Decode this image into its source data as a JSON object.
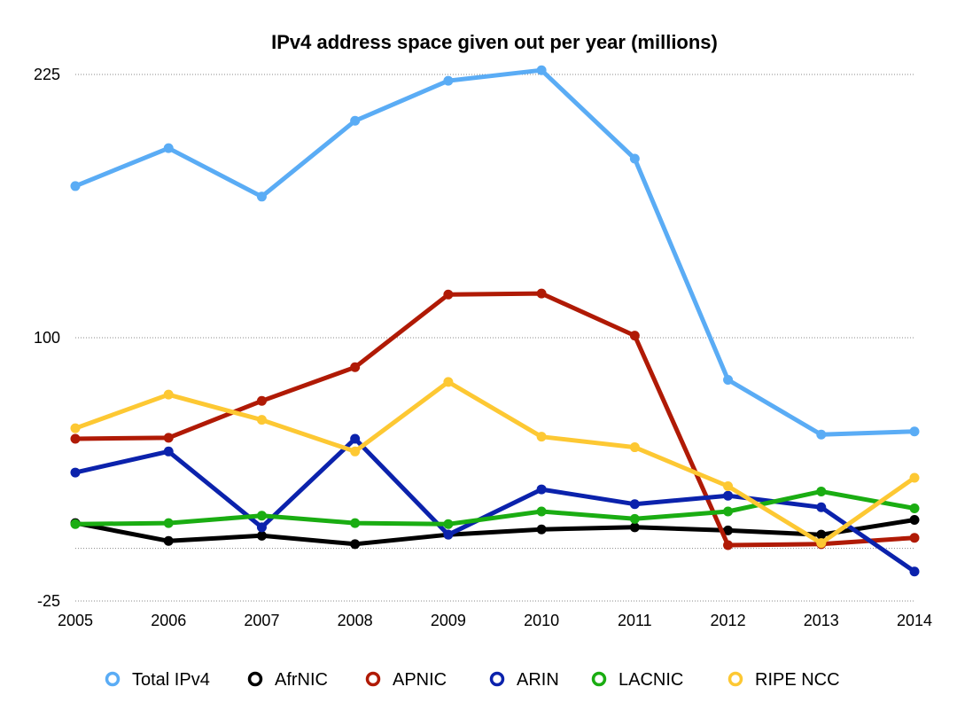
{
  "chart_data": {
    "type": "line",
    "title": "IPv4 address space given out per year (millions)",
    "xlabel": "",
    "ylabel": "",
    "x": [
      "2005",
      "2006",
      "2007",
      "2008",
      "2009",
      "2010",
      "2011",
      "2012",
      "2013",
      "2014"
    ],
    "ylim": [
      -25,
      225
    ],
    "yticks": [
      "225",
      "100",
      "-25"
    ],
    "grid_values": [
      225,
      100,
      0,
      -25
    ],
    "legend_position": "bottom",
    "series": [
      {
        "name": "Total IPv4",
        "color": "#5aacf5",
        "values": [
          172,
          190,
          167,
          203,
          222,
          227,
          185,
          80,
          54,
          55.5
        ]
      },
      {
        "name": "AfrNIC",
        "color": "#000000",
        "values": [
          12,
          3.5,
          6,
          2,
          6.5,
          9,
          10,
          8.5,
          6.5,
          13.5
        ]
      },
      {
        "name": "APNIC",
        "color": "#b01a05",
        "values": [
          52,
          52.5,
          70,
          86,
          120.5,
          121,
          101,
          1.5,
          2,
          5
        ]
      },
      {
        "name": "ARIN",
        "color": "#0b22ac",
        "values": [
          36,
          46,
          10,
          52,
          6.5,
          28,
          21,
          25,
          19.5,
          -11
        ]
      },
      {
        "name": "LACNIC",
        "color": "#1aad12",
        "values": [
          11.5,
          12,
          15.5,
          12,
          11.5,
          17.5,
          14,
          17.5,
          27,
          19
        ]
      },
      {
        "name": "RIPE NCC",
        "color": "#fdc833",
        "values": [
          57,
          73,
          61,
          46,
          79,
          53,
          48,
          29.5,
          2.5,
          33.5
        ]
      }
    ]
  }
}
